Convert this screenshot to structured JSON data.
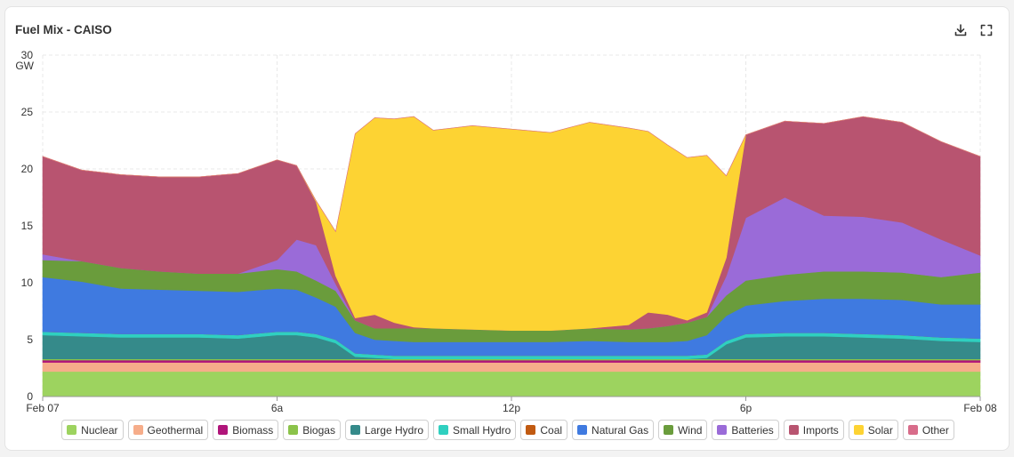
{
  "header": {
    "title": "Fuel Mix - CAISO",
    "download_icon": "download-icon",
    "fullscreen_icon": "fullscreen-icon"
  },
  "chart_data": {
    "type": "area",
    "title": "Fuel Mix - CAISO",
    "ylabel": "GW",
    "ylim": [
      0,
      30
    ],
    "yticks": [
      "0",
      "5",
      "10",
      "15",
      "20",
      "25",
      "30"
    ],
    "xlim": [
      0,
      24
    ],
    "xticks": [
      {
        "value": 0,
        "label": "Feb 07"
      },
      {
        "value": 6,
        "label": "6a"
      },
      {
        "value": 12,
        "label": "12p"
      },
      {
        "value": 18,
        "label": "6p"
      },
      {
        "value": 24,
        "label": "Feb 08"
      }
    ],
    "grid": true,
    "legend_position": "bottom",
    "x_hours": [
      0,
      1,
      2,
      3,
      4,
      5,
      6,
      6.5,
      7,
      7.5,
      8,
      8.5,
      9,
      9.5,
      10,
      11,
      12,
      13,
      14,
      15,
      15.5,
      16,
      16.5,
      17,
      17.5,
      18,
      19,
      20,
      21,
      22,
      23,
      24
    ],
    "series": [
      {
        "name": "Nuclear",
        "color": "#9dd35f",
        "values": [
          2.2,
          2.2,
          2.2,
          2.2,
          2.2,
          2.2,
          2.2,
          2.2,
          2.2,
          2.2,
          2.2,
          2.2,
          2.2,
          2.2,
          2.2,
          2.2,
          2.2,
          2.2,
          2.2,
          2.2,
          2.2,
          2.2,
          2.2,
          2.2,
          2.2,
          2.2,
          2.2,
          2.2,
          2.2,
          2.2,
          2.2,
          2.2
        ]
      },
      {
        "name": "Geothermal",
        "color": "#f6ad8a",
        "values": [
          0.8,
          0.8,
          0.8,
          0.8,
          0.8,
          0.8,
          0.8,
          0.8,
          0.8,
          0.8,
          0.8,
          0.8,
          0.8,
          0.8,
          0.8,
          0.8,
          0.8,
          0.8,
          0.8,
          0.8,
          0.8,
          0.8,
          0.8,
          0.8,
          0.8,
          0.8,
          0.8,
          0.8,
          0.8,
          0.8,
          0.8,
          0.8
        ]
      },
      {
        "name": "Biomass",
        "color": "#b0157a",
        "values": [
          0.2,
          0.2,
          0.2,
          0.2,
          0.2,
          0.2,
          0.2,
          0.2,
          0.2,
          0.2,
          0.2,
          0.2,
          0.2,
          0.2,
          0.2,
          0.2,
          0.2,
          0.2,
          0.2,
          0.2,
          0.2,
          0.2,
          0.2,
          0.2,
          0.2,
          0.2,
          0.2,
          0.2,
          0.2,
          0.2,
          0.2,
          0.2
        ]
      },
      {
        "name": "Biogas",
        "color": "#8bc34a",
        "values": [
          0.1,
          0.1,
          0.1,
          0.1,
          0.1,
          0.1,
          0.1,
          0.1,
          0.1,
          0.1,
          0.1,
          0.1,
          0.1,
          0.1,
          0.1,
          0.1,
          0.1,
          0.1,
          0.1,
          0.1,
          0.1,
          0.1,
          0.1,
          0.1,
          0.1,
          0.1,
          0.1,
          0.1,
          0.1,
          0.1,
          0.1,
          0.1
        ]
      },
      {
        "name": "Large Hydro",
        "color": "#358a8a",
        "values": [
          2.1,
          2.0,
          1.9,
          1.9,
          1.9,
          1.8,
          2.1,
          2.1,
          1.9,
          1.4,
          0.2,
          0.1,
          0.0,
          0.0,
          0.0,
          0.0,
          0.0,
          0.0,
          0.0,
          0.0,
          0.0,
          0.0,
          0.0,
          0.1,
          1.3,
          1.9,
          2.0,
          2.0,
          1.9,
          1.8,
          1.6,
          1.5
        ]
      },
      {
        "name": "Small Hydro",
        "color": "#2fd0c0",
        "values": [
          0.3,
          0.3,
          0.3,
          0.3,
          0.3,
          0.3,
          0.3,
          0.3,
          0.3,
          0.3,
          0.3,
          0.3,
          0.3,
          0.3,
          0.3,
          0.3,
          0.3,
          0.3,
          0.3,
          0.3,
          0.3,
          0.3,
          0.3,
          0.3,
          0.3,
          0.3,
          0.3,
          0.3,
          0.3,
          0.3,
          0.3,
          0.3
        ]
      },
      {
        "name": "Coal",
        "color": "#c15a11",
        "values": [
          0,
          0,
          0,
          0,
          0,
          0,
          0,
          0,
          0,
          0,
          0,
          0,
          0,
          0,
          0,
          0,
          0,
          0,
          0,
          0,
          0,
          0,
          0,
          0,
          0,
          0,
          0,
          0,
          0,
          0,
          0,
          0
        ]
      },
      {
        "name": "Natural Gas",
        "color": "#3f7ae0",
        "values": [
          4.8,
          4.5,
          4.0,
          3.9,
          3.8,
          3.8,
          3.8,
          3.7,
          3.2,
          2.9,
          1.8,
          1.3,
          1.3,
          1.2,
          1.2,
          1.2,
          1.2,
          1.2,
          1.3,
          1.2,
          1.2,
          1.2,
          1.3,
          1.7,
          2.2,
          2.5,
          2.8,
          3.0,
          3.1,
          3.1,
          2.9,
          3.0
        ]
      },
      {
        "name": "Wind",
        "color": "#6a9c3c",
        "values": [
          1.5,
          1.8,
          1.8,
          1.6,
          1.5,
          1.6,
          1.7,
          1.6,
          1.5,
          1.4,
          1.1,
          1.0,
          1.1,
          1.2,
          1.2,
          1.1,
          1.0,
          1.0,
          1.1,
          1.1,
          1.2,
          1.4,
          1.6,
          1.6,
          1.8,
          2.2,
          2.3,
          2.4,
          2.4,
          2.4,
          2.4,
          2.8
        ]
      },
      {
        "name": "Batteries",
        "color": "#9a6bd8",
        "values": [
          0.5,
          0.0,
          0.0,
          0.0,
          0.0,
          0.0,
          0.8,
          2.8,
          3.1,
          0.6,
          0.0,
          0.0,
          0.0,
          0.0,
          0.0,
          0.0,
          0.0,
          0.0,
          0.0,
          0.0,
          0.0,
          0.0,
          0.0,
          0.0,
          1.7,
          5.5,
          6.8,
          4.9,
          4.8,
          4.4,
          3.3,
          1.5
        ]
      },
      {
        "name": "Imports",
        "color": "#b85470",
        "values": [
          8.6,
          8.0,
          8.2,
          8.3,
          8.5,
          8.8,
          8.8,
          6.5,
          3.8,
          0.7,
          0.2,
          1.2,
          0.5,
          0.1,
          0.0,
          0.0,
          0.0,
          0.0,
          0.0,
          0.4,
          1.4,
          1.0,
          0.2,
          0.4,
          1.6,
          7.3,
          6.7,
          8.1,
          8.8,
          8.8,
          8.6,
          8.7
        ]
      },
      {
        "name": "Solar",
        "color": "#fdd333",
        "values": [
          0.0,
          0.0,
          0.0,
          0.0,
          0.0,
          0.0,
          0.0,
          0.0,
          0.1,
          3.9,
          16.2,
          17.3,
          17.9,
          18.5,
          17.4,
          17.9,
          17.7,
          17.4,
          18.1,
          17.3,
          15.9,
          14.9,
          14.3,
          13.8,
          7.2,
          0.0,
          0.0,
          0.0,
          0.0,
          0.0,
          0.0,
          0.0
        ]
      },
      {
        "name": "Other",
        "color": "#d86c8a",
        "values": [
          0,
          0,
          0,
          0,
          0,
          0,
          0,
          0,
          0,
          0,
          0,
          0,
          0,
          0,
          0,
          0,
          0,
          0,
          0,
          0,
          0,
          0,
          0,
          0,
          0,
          0,
          0,
          0,
          0,
          0,
          0,
          0
        ]
      }
    ]
  }
}
